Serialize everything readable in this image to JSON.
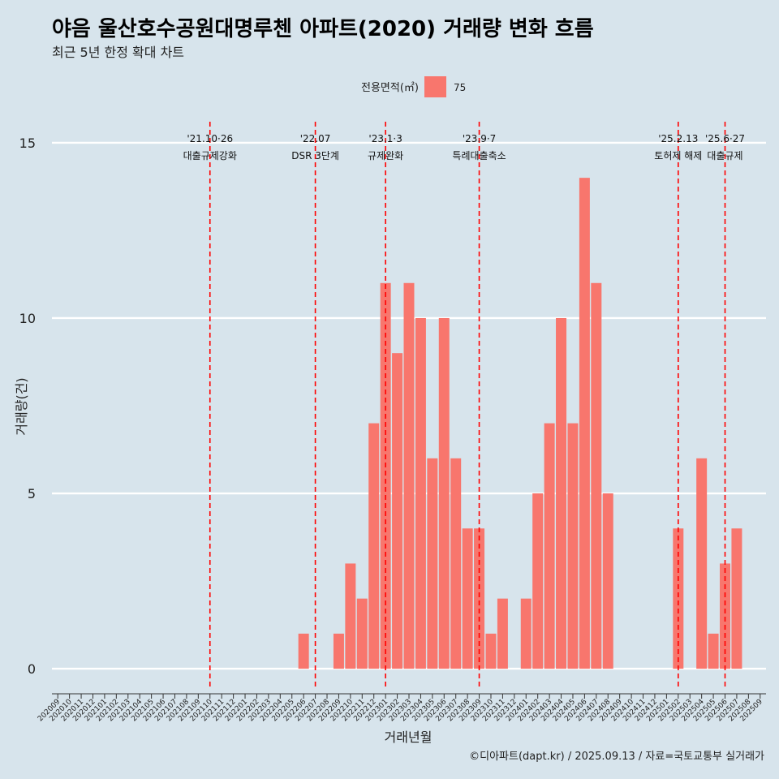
{
  "chart_data": {
    "type": "bar",
    "title": "야음 울산호수공원대명루첸 아파트(2020) 거래량 변화 흐름",
    "subtitle": "최근 5년 한정 확대 차트",
    "xlabel": "거래년월",
    "ylabel": "거래량(건)",
    "ylim": [
      -0.6,
      15.6
    ],
    "yticks": [
      0,
      5,
      10,
      15
    ],
    "grid": true,
    "legend": {
      "title": "전용면적(㎡)",
      "position": "top",
      "items": [
        {
          "label": "75",
          "color": "#f8766d"
        }
      ]
    },
    "categories": [
      "202009",
      "202010",
      "202011",
      "202012",
      "202101",
      "202102",
      "202103",
      "202104",
      "202105",
      "202106",
      "202107",
      "202108",
      "202109",
      "202110",
      "202111",
      "202112",
      "202201",
      "202202",
      "202203",
      "202204",
      "202205",
      "202206",
      "202207",
      "202208",
      "202209",
      "202210",
      "202211",
      "202212",
      "202301",
      "202302",
      "202303",
      "202304",
      "202305",
      "202306",
      "202307",
      "202308",
      "202309",
      "202310",
      "202311",
      "202312",
      "202401",
      "202402",
      "202403",
      "202404",
      "202405",
      "202406",
      "202407",
      "202408",
      "202409",
      "202410",
      "202411",
      "202412",
      "202501",
      "202502",
      "202503",
      "202504",
      "202505",
      "202506",
      "202507",
      "202508",
      "202509"
    ],
    "series": [
      {
        "name": "75",
        "color": "#f8766d",
        "values": [
          0,
          0,
          0,
          0,
          0,
          0,
          0,
          0,
          0,
          0,
          0,
          0,
          0,
          0,
          0,
          0,
          0,
          0,
          0,
          0,
          0,
          1,
          0,
          0,
          1,
          3,
          2,
          7,
          11,
          9,
          11,
          10,
          6,
          10,
          6,
          4,
          4,
          1,
          2,
          0,
          2,
          5,
          7,
          10,
          7,
          14,
          11,
          5,
          0,
          0,
          0,
          0,
          0,
          4,
          0,
          6,
          1,
          3,
          4,
          0,
          0
        ]
      }
    ],
    "events": [
      {
        "category": "202110",
        "date_label": "'21.10·26",
        "text": "대출규제강화"
      },
      {
        "category": "202207",
        "date_label": "'22.07",
        "text": "DSR 3단계"
      },
      {
        "category": "202301",
        "date_label": "'23.1·3",
        "text": "규제완화"
      },
      {
        "category": "202309",
        "date_label": "'23.9·7",
        "text": "특례대출축소"
      },
      {
        "category": "202502",
        "date_label": "'25.2.13",
        "text": "토허제 해제"
      },
      {
        "category": "202506",
        "date_label": "'25.6·27",
        "text": "대출규제"
      }
    ],
    "event_line_color": "#ff0000",
    "caption": "©디아파트(dapt.kr) / 2025.09.13 / 자료=국토교통부 실거래가"
  }
}
